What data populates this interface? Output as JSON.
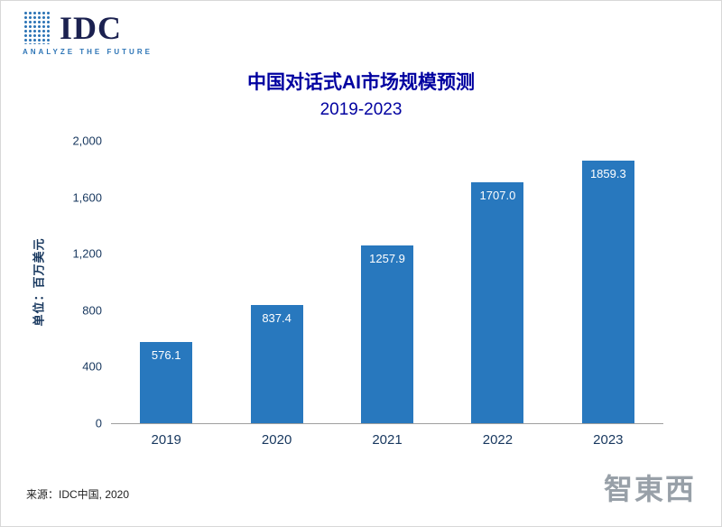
{
  "logo": {
    "text": "IDC",
    "tagline": "ANALYZE THE FUTURE"
  },
  "title": {
    "line1": "中国对话式AI市场规模预测",
    "line2": "2019-2023"
  },
  "chart_data": {
    "type": "bar",
    "title": "中国对话式AI市场规模预测 2019-2023",
    "categories": [
      "2019",
      "2020",
      "2021",
      "2022",
      "2023"
    ],
    "values": [
      576.1,
      837.4,
      1257.9,
      1707.0,
      1859.3
    ],
    "value_labels": [
      "576.1",
      "837.4",
      "1257.9",
      "1707.0",
      "1859.3"
    ],
    "xlabel": "",
    "ylabel": "单位：百万美元",
    "ylim": [
      0,
      2000
    ],
    "yticks": [
      0,
      400,
      800,
      1200,
      1600,
      2000
    ],
    "ytick_labels": [
      "0",
      "400",
      "800",
      "1,200",
      "1,600",
      "2,000"
    ],
    "grid": false,
    "legend_position": "none",
    "bar_color": "#2878be",
    "value_label_color": "#ffffff"
  },
  "footer": {
    "source": "来源：IDC中国, 2020"
  },
  "watermark": {
    "text": "智東西"
  },
  "colors": {
    "title": "#0000a0",
    "axis_text": "#17375e",
    "tagline": "#2e75b6",
    "logo_text": "#1b2150",
    "watermark": "#98a0a8"
  }
}
